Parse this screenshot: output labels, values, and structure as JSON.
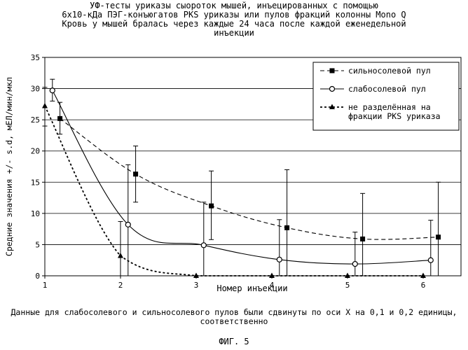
{
  "chart_data": {
    "type": "line",
    "title_lines": [
      "УФ-тесты уриказы сыороток мышей, инъецированных с помощью",
      "6х10-кДа ПЭГ-конъюгатов PKS уриказы или пулов фракций колонны Mono Q",
      "Кровь у мышей бралась через каждые 24 часа после каждой еженедельной",
      "инъекции"
    ],
    "xlabel": "Номер инъекции",
    "ylabel": "Средние значения +/- s.d, мЕЛ/мин/мкл",
    "xlim": [
      1,
      6.5
    ],
    "ylim": [
      0,
      35
    ],
    "xticks": [
      1,
      2,
      3,
      4,
      5,
      6
    ],
    "yticks": [
      0,
      5,
      10,
      15,
      20,
      25,
      30,
      35
    ],
    "legend_position": "top-right",
    "series": [
      {
        "name": "сильносолевой пул",
        "line_style": "dashed",
        "marker": "square-filled",
        "x": [
          1.2,
          2.2,
          3.2,
          4.2,
          5.2,
          6.2
        ],
        "y": [
          25.2,
          16.3,
          11.2,
          7.7,
          5.9,
          6.2
        ],
        "err_low": [
          22.7,
          11.8,
          5.8,
          0,
          0,
          0
        ],
        "err_high": [
          27.8,
          20.8,
          16.8,
          17.0,
          13.2,
          15.0
        ]
      },
      {
        "name": "слабосолевой пул",
        "line_style": "solid",
        "marker": "circle-open",
        "x": [
          1.1,
          2.1,
          3.1,
          4.1,
          5.1,
          6.1
        ],
        "y": [
          29.7,
          8.2,
          4.9,
          2.6,
          1.9,
          2.5
        ],
        "err_low": [
          28.0,
          0,
          0,
          0,
          0,
          0
        ],
        "err_high": [
          31.5,
          17.8,
          11.8,
          9.0,
          7.0,
          8.9
        ]
      },
      {
        "name": "не разделённая на фракции PKS уриказа",
        "name_lines": [
          "не разделённая на",
          "фракции PKS уриказа"
        ],
        "line_style": "dotted",
        "marker": "triangle-filled",
        "x": [
          1,
          2,
          3,
          4,
          5,
          6
        ],
        "y": [
          27.2,
          3.2,
          0,
          0,
          0,
          0
        ],
        "err_low": [
          24.0,
          0,
          0,
          0,
          0,
          0
        ],
        "err_high": [
          30.2,
          8.7,
          0,
          0,
          0,
          0
        ]
      }
    ]
  },
  "footnote_lines": [
    "Данные для слабосолевого и сильносолевого пулов были сдвинуты по оси X на 0,1 и 0,2 единицы,",
    "соответственно"
  ],
  "figure_label": "ФИГ. 5"
}
